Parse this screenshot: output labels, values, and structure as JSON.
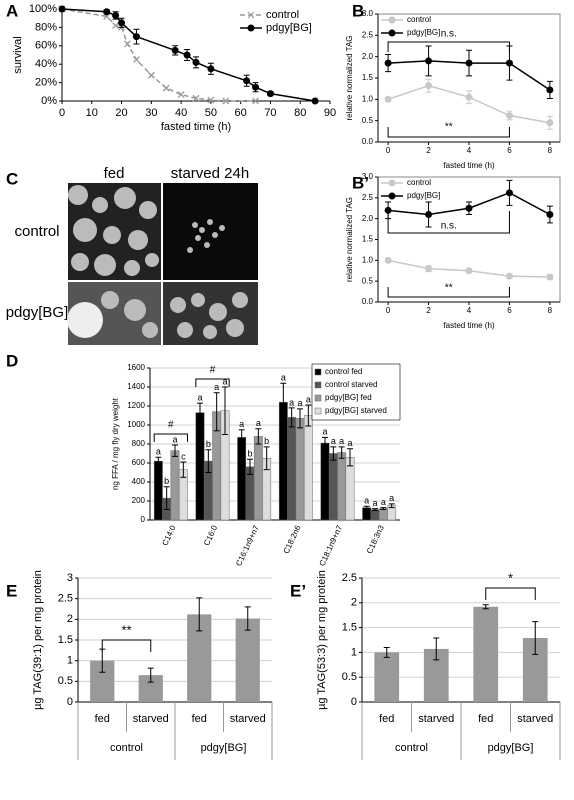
{
  "chart_data": [
    {
      "type": "line",
      "panel": "A",
      "xlabel": "fasted time (h)",
      "ylabel": "survival",
      "xlim": [
        0,
        90
      ],
      "xticks": [
        0,
        10,
        20,
        30,
        40,
        50,
        60,
        70,
        80,
        90
      ],
      "ylim": [
        0,
        100
      ],
      "yticks": [
        {
          "value": 0,
          "label": "0%"
        },
        {
          "value": 20,
          "label": "20%"
        },
        {
          "value": 40,
          "label": "40%"
        },
        {
          "value": 60,
          "label": "60%"
        },
        {
          "value": 80,
          "label": "80%"
        },
        {
          "value": 100,
          "label": "100%"
        }
      ],
      "legend": "upper right",
      "grid": false,
      "frame": false,
      "series": [
        {
          "name": "control",
          "color": "#999999",
          "linestyle": "dashed",
          "marker": "x",
          "x": [
            0,
            15,
            18,
            20,
            22,
            25,
            30,
            35,
            40,
            45,
            50,
            55,
            65
          ],
          "values": [
            100,
            92,
            82,
            80,
            62,
            45,
            28,
            14,
            7,
            3,
            1,
            0,
            0
          ]
        },
        {
          "name": "pdgy[BG]",
          "color": "#000000",
          "linestyle": "solid",
          "marker": "circle",
          "x": [
            0,
            15,
            18,
            20,
            25,
            38,
            42,
            45,
            50,
            62,
            65,
            70,
            85
          ],
          "values": [
            100,
            97,
            93,
            85,
            70,
            55,
            50,
            42,
            35,
            22,
            15,
            8,
            0
          ],
          "errors": [
            0,
            2,
            4,
            5,
            8,
            5,
            6,
            6,
            6,
            6,
            5,
            2,
            0
          ]
        }
      ]
    },
    {
      "type": "line",
      "panel": "B",
      "xlabel": "fasted time (h)",
      "ylabel": "relative normalized TAG",
      "x": [
        0,
        2,
        4,
        6,
        8
      ],
      "xlim": [
        -0.5,
        8.5
      ],
      "xticks": [
        0,
        2,
        4,
        6,
        8
      ],
      "ylim": [
        0,
        3
      ],
      "yticks": [
        {
          "value": 0,
          "label": "0.0"
        },
        0.5,
        {
          "value": 1,
          "label": "1.0"
        },
        1.5,
        {
          "value": 2,
          "label": "2.0"
        },
        2.5,
        {
          "value": 3,
          "label": "3.0"
        }
      ],
      "legend": "upper left",
      "grid": false,
      "frame": true,
      "series": [
        {
          "name": "control",
          "color": "#c8c8c8",
          "linestyle": "solid",
          "marker": "circle",
          "values": [
            1.0,
            1.32,
            1.05,
            0.62,
            0.45
          ],
          "errors": [
            0.05,
            0.15,
            0.15,
            0.1,
            0.15
          ]
        },
        {
          "name": "pdgy[BG]",
          "color": "#000000",
          "linestyle": "solid",
          "marker": "circle",
          "values": [
            1.85,
            1.9,
            1.85,
            1.85,
            1.22
          ],
          "errors": [
            0.2,
            0.35,
            0.3,
            0.4,
            0.2
          ]
        }
      ],
      "brackets": [
        {
          "text": "n.s.",
          "from": 0,
          "to": 6
        },
        {
          "text": "**",
          "from": 0,
          "to": 6
        }
      ]
    },
    {
      "type": "line",
      "panel": "B’",
      "xlabel": "fasted time (h)",
      "ylabel": "relative normalized TAG",
      "x": [
        0,
        2,
        4,
        6,
        8
      ],
      "xlim": [
        -0.5,
        8.5
      ],
      "xticks": [
        0,
        2,
        4,
        6,
        8
      ],
      "ylim": [
        0,
        3
      ],
      "yticks": [
        {
          "value": 0,
          "label": "0.0"
        },
        0.5,
        {
          "value": 1,
          "label": "1.0"
        },
        1.5,
        {
          "value": 2,
          "label": "2.0"
        },
        2.5,
        {
          "value": 3,
          "label": "3.0"
        }
      ],
      "legend": "upper left",
      "grid": false,
      "frame": true,
      "series": [
        {
          "name": "control",
          "color": "#c8c8c8",
          "linestyle": "solid",
          "marker": "circle",
          "values": [
            1.0,
            0.8,
            0.75,
            0.62,
            0.6
          ],
          "errors": [
            0.05,
            0.07,
            0.05,
            0.05,
            0.05
          ]
        },
        {
          "name": "pdgy[BG]",
          "color": "#000000",
          "linestyle": "solid",
          "marker": "circle",
          "values": [
            2.2,
            2.1,
            2.25,
            2.62,
            2.1
          ],
          "errors": [
            0.2,
            0.3,
            0.15,
            0.3,
            0.2
          ]
        }
      ],
      "brackets": [
        {
          "text": "n.s.",
          "from": 0,
          "to": 6
        },
        {
          "text": "**",
          "from": 0,
          "to": 6
        }
      ]
    },
    {
      "type": "bar",
      "panel": "D",
      "ylabel": "ng FFA / mg fly dry weight",
      "categories": [
        "C14:0",
        "C16:0",
        "C16:1n9+n7",
        "C18:2n6",
        "C18:1n9+n7",
        "C18:3n3"
      ],
      "ylim": [
        0,
        1600
      ],
      "yticks": [
        0,
        200,
        400,
        600,
        800,
        1000,
        1200,
        1400,
        1600
      ],
      "legend": "upper right",
      "grid": true,
      "series": [
        {
          "name": "control fed",
          "color": "#000000",
          "values": [
            620,
            1130,
            870,
            1240,
            810,
            130
          ],
          "errors": [
            40,
            100,
            80,
            200,
            60,
            15
          ],
          "letters": [
            "a",
            "a",
            "a",
            "a",
            "a",
            "a"
          ]
        },
        {
          "name": "control starved",
          "color": "#555555",
          "values": [
            230,
            620,
            560,
            1080,
            700,
            110
          ],
          "errors": [
            120,
            120,
            80,
            100,
            70,
            10
          ],
          "letters": [
            "b",
            "b",
            "b",
            "a",
            "a",
            "a"
          ]
        },
        {
          "name": "pdgy[BG] fed",
          "color": "#999999",
          "values": [
            730,
            1140,
            880,
            1070,
            710,
            120
          ],
          "errors": [
            60,
            200,
            80,
            100,
            60,
            10
          ],
          "letters": [
            "a",
            "a",
            "a",
            "a",
            "a",
            "a"
          ]
        },
        {
          "name": "pdgy[BG] starved",
          "color": "#dddddd",
          "values": [
            530,
            1150,
            650,
            1100,
            660,
            150
          ],
          "errors": [
            80,
            250,
            120,
            110,
            90,
            20
          ],
          "letters": [
            "c",
            "a",
            "b",
            "a",
            "a",
            "a"
          ]
        }
      ],
      "brackets": [
        {
          "text": "#",
          "from": 0,
          "to": 0
        },
        {
          "text": "#",
          "from": 1,
          "to": 1
        }
      ]
    },
    {
      "type": "bar",
      "panel": "E",
      "ylabel": "µg TAG(39:1) per mg protein",
      "categories": [
        "fed",
        "starved",
        "fed",
        "starved"
      ],
      "groups": [
        "control",
        "pdgy[BG]"
      ],
      "ylim": [
        0,
        3
      ],
      "yticks": [
        0,
        0.5,
        1,
        1.5,
        2,
        2.5,
        3
      ],
      "grid": true,
      "color": "#999999",
      "values": [
        1.0,
        0.65,
        2.12,
        2.02
      ],
      "errors": [
        0.28,
        0.17,
        0.4,
        0.28
      ],
      "brackets": [
        {
          "text": "**",
          "from": 0,
          "to": 1
        }
      ]
    },
    {
      "type": "bar",
      "panel": "E’",
      "ylabel": "µg TAG(53:3) per mg protein",
      "categories": [
        "fed",
        "starved",
        "fed",
        "starved"
      ],
      "groups": [
        "control",
        "pdgy[BG]"
      ],
      "ylim": [
        0,
        2.5
      ],
      "yticks": [
        0,
        0.5,
        1,
        1.5,
        2,
        2.5
      ],
      "grid": true,
      "color": "#999999",
      "values": [
        1.0,
        1.07,
        1.92,
        1.29
      ],
      "errors": [
        0.1,
        0.22,
        0.04,
        0.33
      ],
      "brackets": [
        {
          "text": "*",
          "from": 2,
          "to": 3
        }
      ]
    }
  ],
  "image_panel": {
    "panel": "C",
    "columns": [
      "fed",
      "starved 24h"
    ],
    "rows": [
      "control",
      "pdgy[BG]"
    ]
  }
}
